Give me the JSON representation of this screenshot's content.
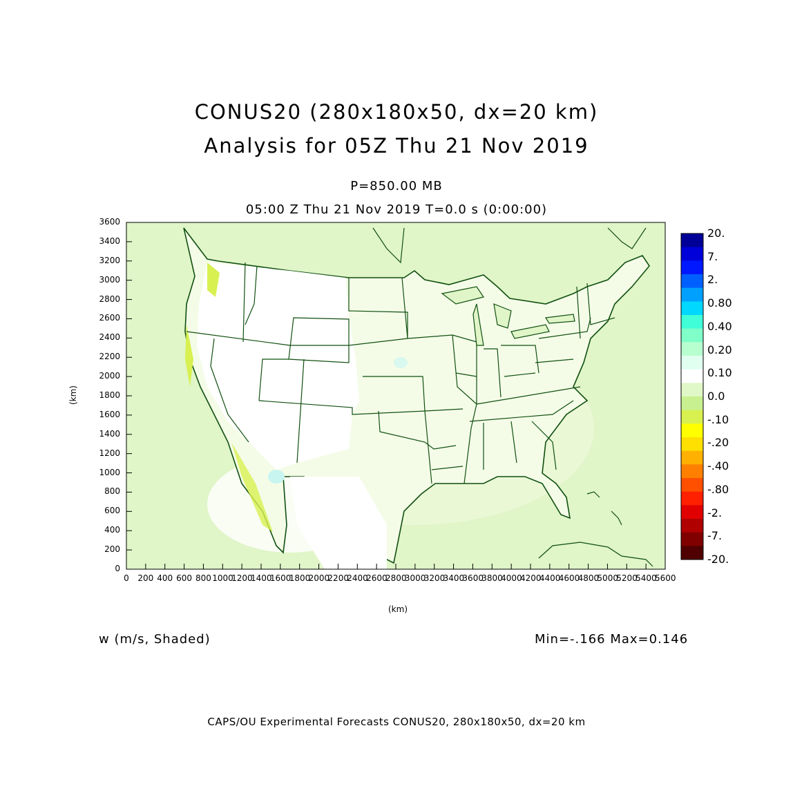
{
  "title": {
    "line1": "CONUS20 (280x180x50, dx=20 km)",
    "line2": "Analysis for 05Z Thu 21 Nov 2019"
  },
  "level": "P=850.00 MB",
  "time_line": "05:00 Z Thu 21 Nov 2019    T=0.0 s (0:00:00)",
  "y_axis": {
    "label": "(km)",
    "ticks": [
      "0",
      "200",
      "400",
      "600",
      "800",
      "1000",
      "1200",
      "1400",
      "1600",
      "1800",
      "2000",
      "2200",
      "2400",
      "2600",
      "2800",
      "3000",
      "3200",
      "3400",
      "3600"
    ]
  },
  "x_axis": {
    "label": "(km)",
    "ticks": [
      "0",
      "200",
      "400",
      "600",
      "800",
      "1000",
      "1200",
      "1400",
      "1600",
      "1800",
      "2000",
      "2200",
      "2400",
      "2600",
      "2800",
      "3000",
      "3200",
      "3400",
      "3600",
      "3800",
      "4000",
      "4200",
      "4400",
      "4600",
      "4800",
      "5000",
      "5200",
      "5400",
      "5600"
    ]
  },
  "colorbar": {
    "labels": [
      "20.",
      "7.",
      "2.",
      "0.80",
      "0.40",
      "0.20",
      "0.10",
      "0.0",
      "-.10",
      "-.20",
      "-.40",
      "-.80",
      "-2.",
      "-7.",
      "-20."
    ],
    "colors": [
      "#000098",
      "#0000d8",
      "#0018ff",
      "#0060ff",
      "#00a0ff",
      "#00d8ff",
      "#40ffd8",
      "#80ffc8",
      "#b8ffd0",
      "#e0fff0",
      "#ffffff",
      "#e0f8c8",
      "#c8f090",
      "#d8f050",
      "#ffff00",
      "#ffe000",
      "#ffb000",
      "#ff8000",
      "#ff5000",
      "#ff2000",
      "#e00000",
      "#b00000",
      "#800000",
      "#500000"
    ]
  },
  "field_label": "w (m/s, Shaded)",
  "minmax": "Min=-.166 Max=0.146",
  "footer": "CAPS/OU Experimental Forecasts  CONUS20, 280x180x50, dx=20 km",
  "colors": {
    "background_field": "#e0f5c8",
    "land_light": "#f0fbe4",
    "boundary": "#0f4f0f",
    "yellow_green": "#d8f050"
  }
}
